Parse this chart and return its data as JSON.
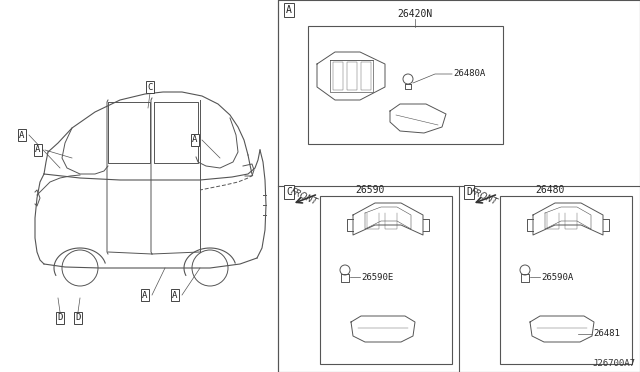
{
  "bg_color": "#ffffff",
  "line_color": "#555555",
  "title_code": "J26700A7",
  "part_26420N": "26420N",
  "part_26480A": "26480A",
  "part_26590": "26590",
  "part_26590E": "26590E",
  "part_26480": "26480",
  "part_26590A": "26590A",
  "part_26481": "26481",
  "front_label": "FRONT"
}
